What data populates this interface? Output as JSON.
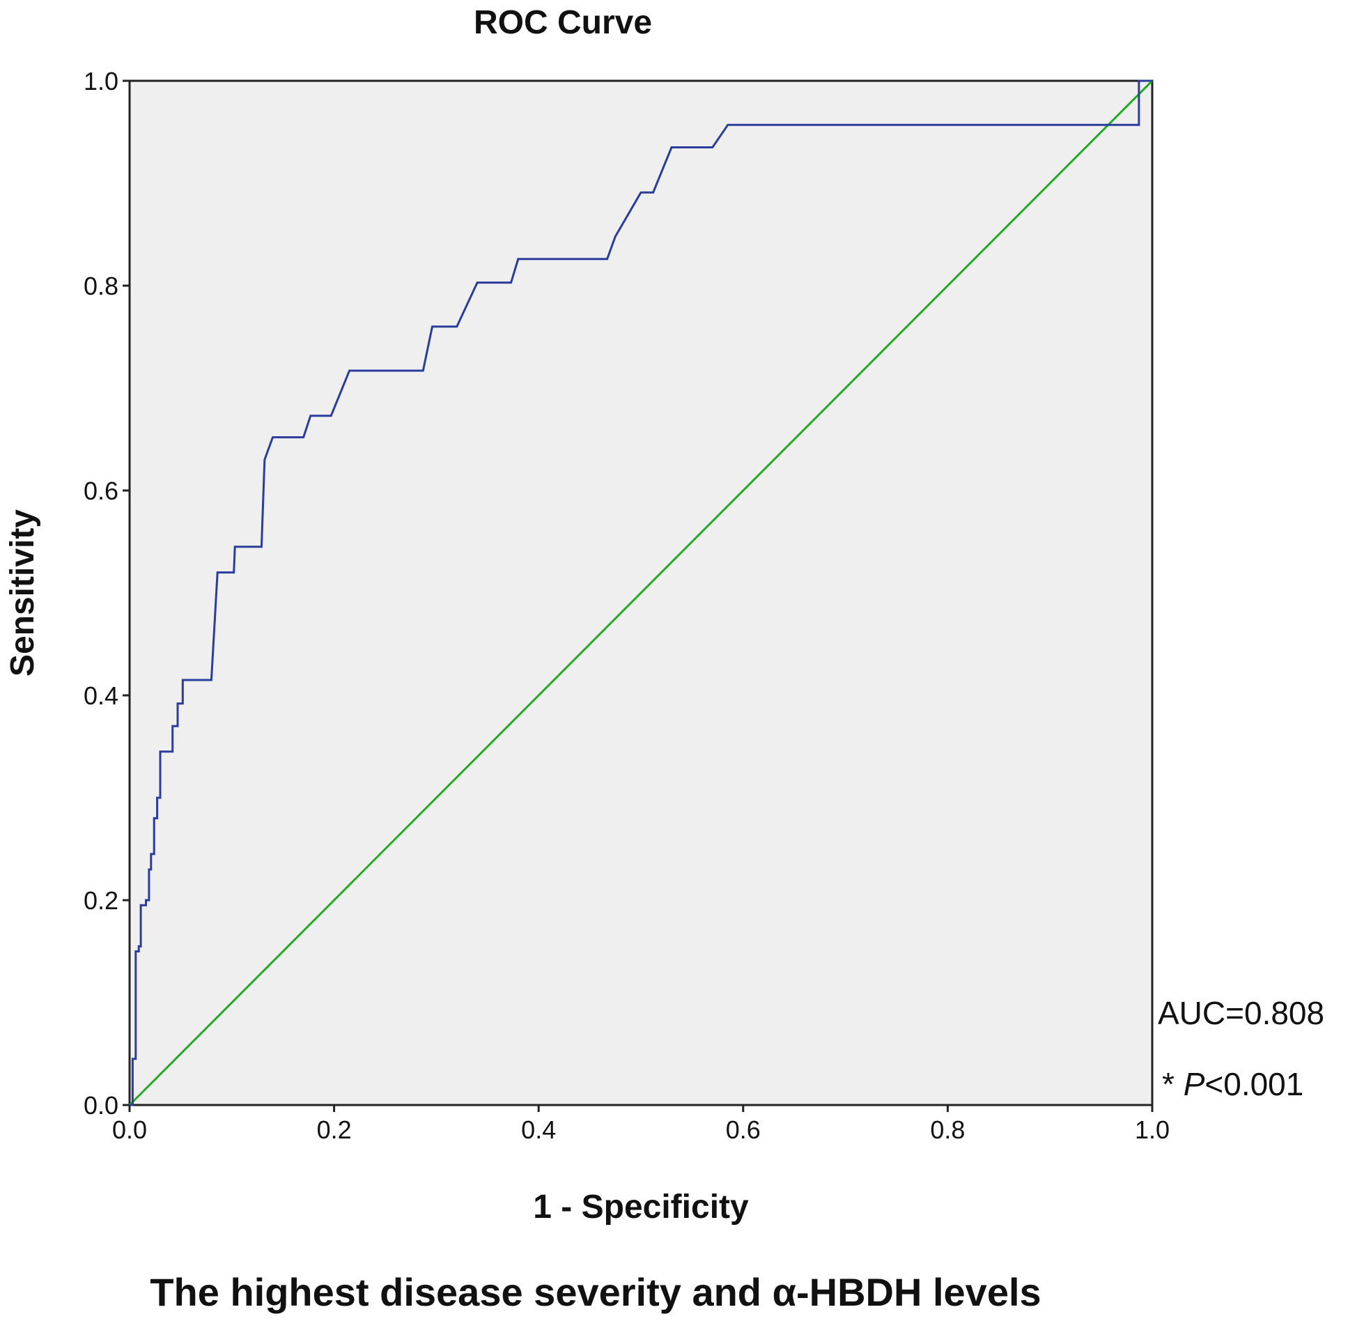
{
  "chart_data": {
    "type": "line",
    "title": "ROC Curve",
    "xlabel": "1 - Specificity",
    "ylabel": "Sensitivity",
    "xlim": [
      0,
      1
    ],
    "ylim": [
      0,
      1
    ],
    "x_ticks": [
      "0.0",
      "0.2",
      "0.4",
      "0.6",
      "0.8",
      "1.0"
    ],
    "y_ticks": [
      "0.0",
      "0.2",
      "0.4",
      "0.6",
      "0.8",
      "1.0"
    ],
    "grid": false,
    "plot_background": "#efefef",
    "series": [
      {
        "color": "#2b3d9c",
        "points": [
          [
            0.0,
            0.0
          ],
          [
            0.003,
            0.0
          ],
          [
            0.003,
            0.045
          ],
          [
            0.006,
            0.045
          ],
          [
            0.006,
            0.15
          ],
          [
            0.009,
            0.15
          ],
          [
            0.009,
            0.155
          ],
          [
            0.011,
            0.155
          ],
          [
            0.011,
            0.195
          ],
          [
            0.016,
            0.195
          ],
          [
            0.016,
            0.2
          ],
          [
            0.019,
            0.2
          ],
          [
            0.019,
            0.23
          ],
          [
            0.021,
            0.23
          ],
          [
            0.021,
            0.245
          ],
          [
            0.024,
            0.245
          ],
          [
            0.024,
            0.28
          ],
          [
            0.027,
            0.28
          ],
          [
            0.027,
            0.3
          ],
          [
            0.03,
            0.3
          ],
          [
            0.03,
            0.345
          ],
          [
            0.042,
            0.345
          ],
          [
            0.042,
            0.37
          ],
          [
            0.047,
            0.37
          ],
          [
            0.047,
            0.392
          ],
          [
            0.052,
            0.392
          ],
          [
            0.052,
            0.415
          ],
          [
            0.08,
            0.415
          ],
          [
            0.086,
            0.52
          ],
          [
            0.102,
            0.52
          ],
          [
            0.103,
            0.545
          ],
          [
            0.129,
            0.545
          ],
          [
            0.132,
            0.63
          ],
          [
            0.14,
            0.652
          ],
          [
            0.17,
            0.652
          ],
          [
            0.177,
            0.673
          ],
          [
            0.197,
            0.673
          ],
          [
            0.215,
            0.717
          ],
          [
            0.287,
            0.717
          ],
          [
            0.296,
            0.76
          ],
          [
            0.32,
            0.76
          ],
          [
            0.34,
            0.803
          ],
          [
            0.373,
            0.803
          ],
          [
            0.38,
            0.826
          ],
          [
            0.467,
            0.826
          ],
          [
            0.475,
            0.848
          ],
          [
            0.5,
            0.891
          ],
          [
            0.512,
            0.891
          ],
          [
            0.53,
            0.935
          ],
          [
            0.57,
            0.935
          ],
          [
            0.585,
            0.957
          ],
          [
            0.987,
            0.957
          ],
          [
            0.987,
            1.0
          ],
          [
            0.993,
            1.0
          ],
          [
            1.0,
            1.0
          ]
        ]
      },
      {
        "color": "#22aa22",
        "points": [
          [
            0,
            0
          ],
          [
            1,
            1
          ]
        ]
      }
    ],
    "annotations": [
      "AUC=0.808",
      "* ",
      "P",
      "<0.001"
    ],
    "caption": "The highest disease severity and α-HBDH levels"
  }
}
